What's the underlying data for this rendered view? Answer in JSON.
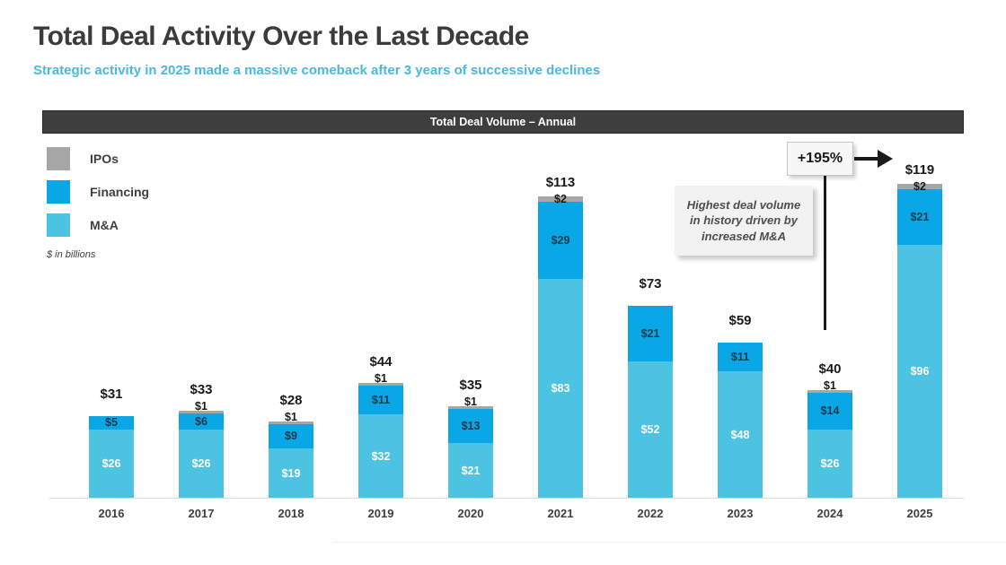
{
  "page": {
    "title": "Total Deal Activity Over the Last Decade",
    "subtitle": "Strategic activity in 2025 made a massive comeback after 3 years of successive declines"
  },
  "panel": {
    "header": "Total Deal Volume – Annual"
  },
  "legend": {
    "items": [
      {
        "label": "IPOs",
        "color": "#a6a6a6"
      },
      {
        "label": "Financing",
        "color": "#09a7e6"
      },
      {
        "label": "M&A",
        "color": "#4cc3e2"
      }
    ],
    "units_note": "$ in billions"
  },
  "annotations": {
    "growth_label": "+195%",
    "callout_lines": [
      "Highest deal volume",
      "in history driven by",
      "increased M&A"
    ]
  },
  "colors": {
    "title_text": "#3b3b3b",
    "subtitle_text": "#4ab9dd",
    "header_bar": "#3e3e3e",
    "mna": "#4cc3e2",
    "financing": "#09a7e6",
    "ipos": "#a6a6a6",
    "mna_label": "#ffffff",
    "financing_label": "#16394c",
    "total_label": "#1a1a1a"
  },
  "chart_data": {
    "type": "bar",
    "stacked": true,
    "title": "Total Deal Volume – Annual",
    "xlabel": "",
    "ylabel": "$ in billions",
    "axes_hidden": true,
    "grid": false,
    "legend_position": "upper-left",
    "ylim": [
      0,
      125
    ],
    "categories": [
      "2016",
      "2017",
      "2018",
      "2019",
      "2020",
      "2021",
      "2022",
      "2023",
      "2024",
      "2025"
    ],
    "series": [
      {
        "name": "M&A",
        "color": "#4cc3e2",
        "values": [
          26,
          26,
          19,
          32,
          21,
          83,
          52,
          48,
          26,
          96
        ]
      },
      {
        "name": "Financing",
        "color": "#09a7e6",
        "values": [
          5,
          6,
          9,
          11,
          13,
          29,
          21,
          11,
          14,
          21
        ]
      },
      {
        "name": "IPOs",
        "color": "#a6a6a6",
        "values": [
          0,
          1,
          1,
          1,
          1,
          2,
          0,
          0,
          1,
          2
        ]
      }
    ],
    "totals": [
      31,
      33,
      28,
      44,
      35,
      113,
      73,
      59,
      40,
      119
    ],
    "annotation_growth": {
      "text": "+195%",
      "from_year": "2024",
      "to_year": "2025"
    },
    "annotation_note": "Highest deal volume in history driven by increased M&A"
  }
}
